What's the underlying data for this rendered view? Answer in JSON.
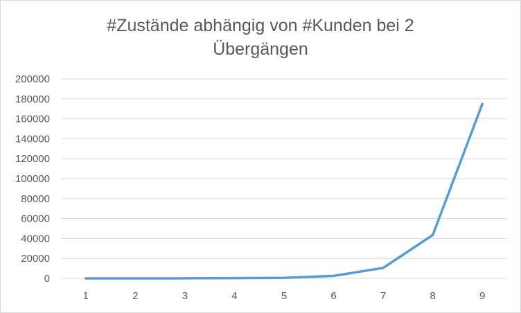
{
  "chart_data": {
    "type": "line",
    "title_lines": [
      "#Zustände abhängig von #Kunden bei 2",
      "Übergängen"
    ],
    "xlabel": "",
    "ylabel": "",
    "categories": [
      "1",
      "2",
      "3",
      "4",
      "5",
      "6",
      "7",
      "8",
      "9"
    ],
    "series": [
      {
        "values": [
          0,
          10,
          50,
          250,
          500,
          2500,
          10500,
          43500,
          175000
        ],
        "color": "#5b9bd5"
      }
    ],
    "ylim": [
      0,
      200000
    ],
    "yticks": [
      0,
      20000,
      40000,
      60000,
      80000,
      100000,
      120000,
      140000,
      160000,
      180000,
      200000
    ],
    "grid": true,
    "legend": "none",
    "colors": {
      "grid": "#d9d9d9",
      "text": "#595959",
      "axis": "#d9d9d9"
    }
  }
}
